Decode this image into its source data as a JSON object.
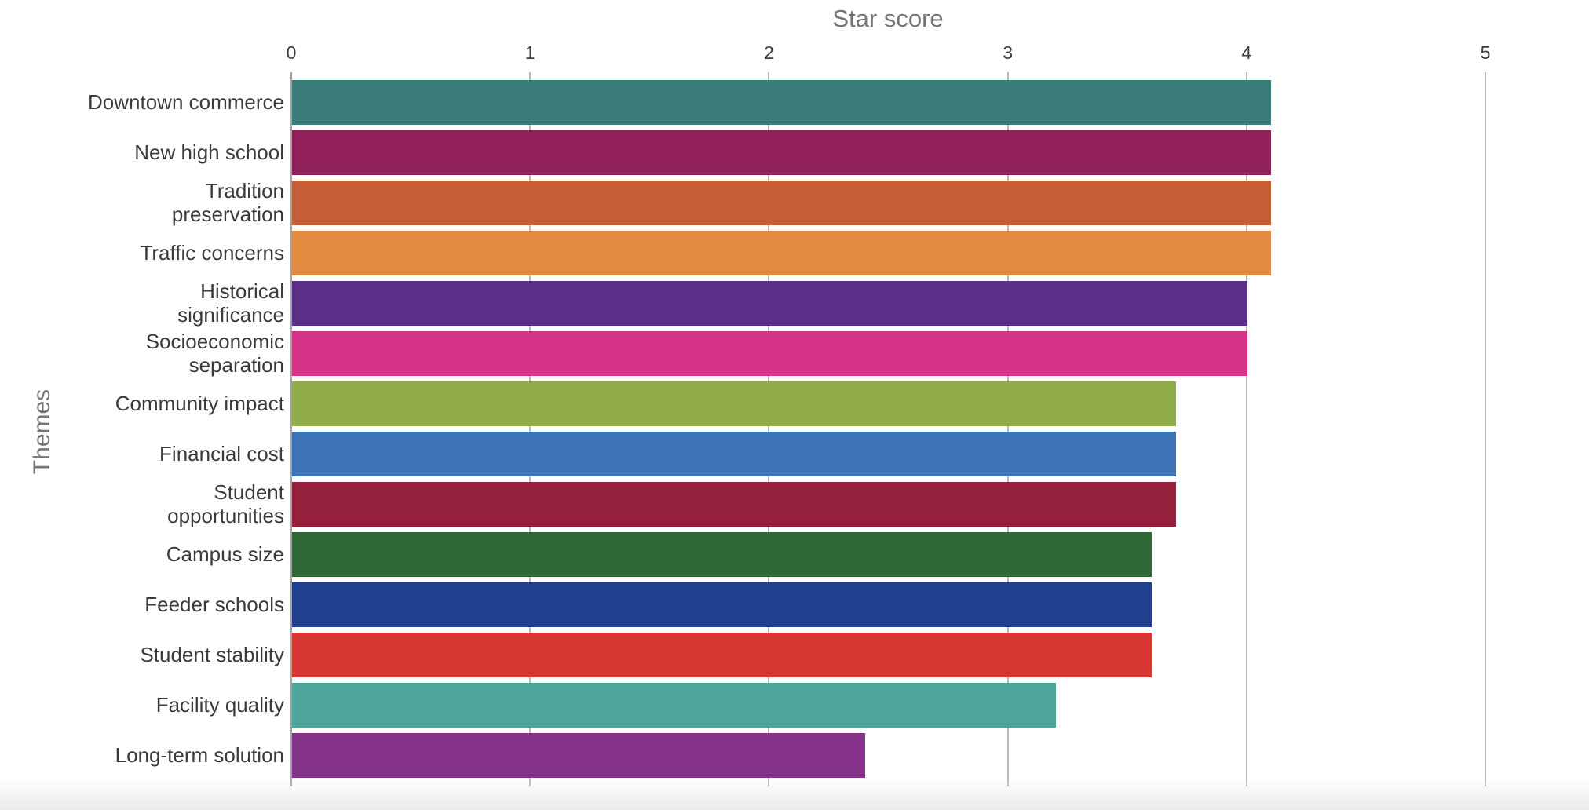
{
  "title": "Star score",
  "ylabel_text": "Themes",
  "chart_data": {
    "type": "bar",
    "orientation": "horizontal",
    "title": "Star score",
    "xlabel": "Star score",
    "ylabel": "Themes",
    "xlim": [
      0,
      5
    ],
    "x_ticks": [
      "0",
      "1",
      "2",
      "3",
      "4",
      "5"
    ],
    "grid": true,
    "axis_position": "top",
    "categories": [
      "Downtown commerce",
      "New high school",
      "Tradition preservation",
      "Traffic concerns",
      "Historical significance",
      "Socioeconomic separation",
      "Community impact",
      "Financial cost",
      "Student opportunities",
      "Campus size",
      "Feeder schools",
      "Student stability",
      "Facility quality",
      "Long-term solution"
    ],
    "display_labels": [
      "Downtown commerce",
      "New high school",
      "Tradition\npreservation",
      "Traffic concerns",
      "Historical\nsignificance",
      "Socioeconomic\nseparation",
      "Community impact",
      "Financial cost",
      "Student\nopportunities",
      "Campus size",
      "Feeder schools",
      "Student stability",
      "Facility quality",
      "Long-term solution"
    ],
    "values": [
      4.1,
      4.1,
      4.1,
      4.1,
      4.0,
      4.0,
      3.7,
      3.7,
      3.7,
      3.6,
      3.6,
      3.6,
      3.2,
      2.4
    ],
    "colors": [
      "#3A7D78",
      "#92215A",
      "#C55D36",
      "#E28A3D",
      "#5B2E88",
      "#D53489",
      "#90AC49",
      "#3B73B6",
      "#94203B",
      "#2F6836",
      "#213F8F",
      "#D63732",
      "#4CA49B",
      "#853389"
    ],
    "grid_color": "#b9b9b9",
    "title_color": "#757575",
    "tick_label_color": "#3d3d3d",
    "category_label_color": "#3b3b3b"
  }
}
